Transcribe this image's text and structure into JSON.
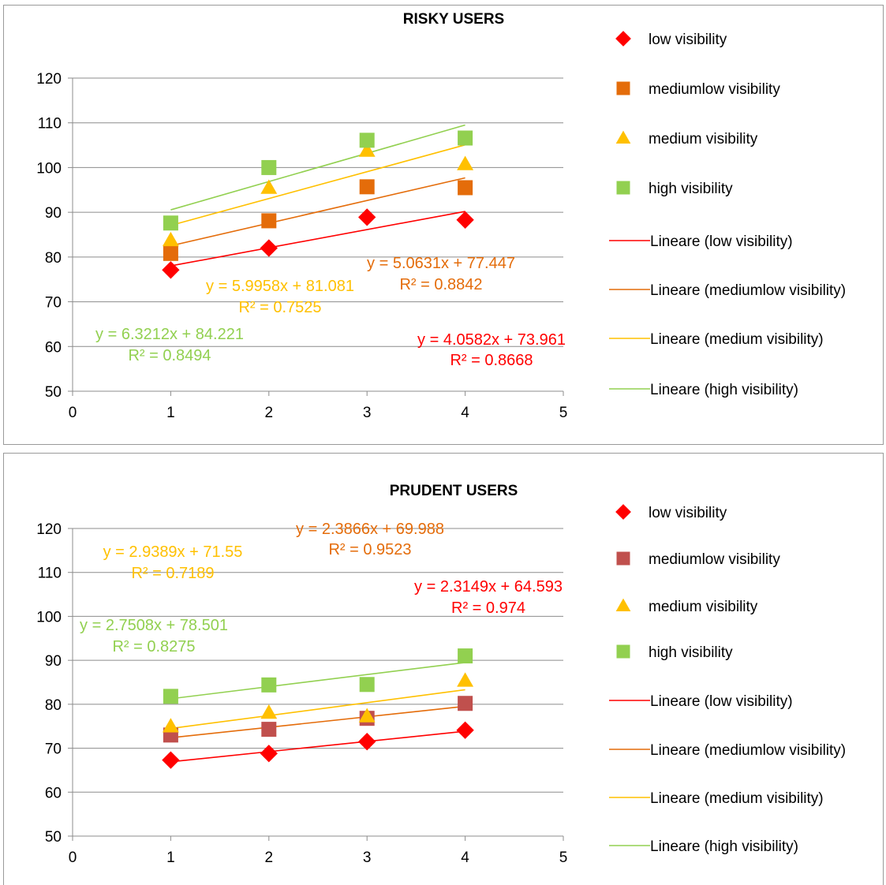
{
  "chart_data": [
    {
      "type": "scatter",
      "title": "RISKY USERS",
      "xlabel": "",
      "ylabel": "",
      "xlim": [
        0,
        5
      ],
      "ylim": [
        50,
        120
      ],
      "x_ticks": [
        "0",
        "1",
        "2",
        "3",
        "4",
        "5"
      ],
      "y_ticks": [
        "50",
        "60",
        "70",
        "80",
        "90",
        "100",
        "110",
        "120"
      ],
      "grid": "horizontal",
      "legend_position": "right",
      "series": [
        {
          "name": "low visibility",
          "marker": "diamond",
          "color": "#ff0000",
          "x": [
            1,
            2,
            3,
            4
          ],
          "y": [
            77.1,
            82.0,
            88.9,
            88.3
          ]
        },
        {
          "name": "mediumlow visibility",
          "marker": "square",
          "color": "#e46c0a",
          "x": [
            1,
            2,
            3,
            4
          ],
          "y": [
            80.8,
            88.1,
            95.7,
            95.5
          ]
        },
        {
          "name": "medium visibility",
          "marker": "triangle",
          "color": "#ffc000",
          "x": [
            1,
            2,
            3,
            4
          ],
          "y": [
            83.8,
            95.5,
            103.8,
            100.8
          ]
        },
        {
          "name": "high visibility",
          "marker": "square",
          "color": "#92d050",
          "x": [
            1,
            2,
            3,
            4
          ],
          "y": [
            87.6,
            100.0,
            106.1,
            106.6
          ]
        }
      ],
      "trendlines": [
        {
          "name": "Lineare (low visibility)",
          "color": "#ff0000",
          "slope": 4.0582,
          "intercept": 73.961,
          "x_range": [
            1,
            4
          ],
          "equation": "y = 4.0582x + 73.961",
          "r2": "R² = 0.8668"
        },
        {
          "name": "Lineare (mediumlow visibility)",
          "color": "#e46c0a",
          "slope": 5.0631,
          "intercept": 77.447,
          "x_range": [
            1,
            4
          ],
          "equation": "y = 5.0631x + 77.447",
          "r2": "R² = 0.8842"
        },
        {
          "name": "Lineare (medium visibility)",
          "color": "#ffc000",
          "slope": 5.9958,
          "intercept": 81.081,
          "x_range": [
            1,
            4
          ],
          "equation": "y = 5.9958x + 81.081",
          "r2": "R² = 0.7525"
        },
        {
          "name": "Lineare (high visibility)",
          "color": "#92d050",
          "slope": 6.3212,
          "intercept": 84.221,
          "x_range": [
            1,
            4
          ],
          "equation": "y = 6.3212x + 84.221",
          "r2": "R² = 0.8494"
        }
      ]
    },
    {
      "type": "scatter",
      "title": "PRUDENT USERS",
      "xlabel": "",
      "ylabel": "",
      "xlim": [
        0,
        5
      ],
      "ylim": [
        50,
        120
      ],
      "x_ticks": [
        "0",
        "1",
        "2",
        "3",
        "4",
        "5"
      ],
      "y_ticks": [
        "50",
        "60",
        "70",
        "80",
        "90",
        "100",
        "110",
        "120"
      ],
      "grid": "horizontal",
      "legend_position": "right",
      "series": [
        {
          "name": "low visibility",
          "marker": "diamond",
          "color": "#ff0000",
          "x": [
            1,
            2,
            3,
            4
          ],
          "y": [
            67.3,
            68.8,
            71.5,
            74.1
          ]
        },
        {
          "name": "mediumlow visibility",
          "marker": "square",
          "color": "#c0504d",
          "x": [
            1,
            2,
            3,
            4
          ],
          "y": [
            73.0,
            74.3,
            76.8,
            80.2
          ]
        },
        {
          "name": "medium visibility",
          "marker": "triangle",
          "color": "#ffc000",
          "x": [
            1,
            2,
            3,
            4
          ],
          "y": [
            75.0,
            78.1,
            77.3,
            85.4
          ]
        },
        {
          "name": "high visibility",
          "marker": "square",
          "color": "#92d050",
          "x": [
            1,
            2,
            3,
            4
          ],
          "y": [
            81.8,
            84.4,
            84.5,
            91.0
          ]
        }
      ],
      "trendlines": [
        {
          "name": "Lineare (low visibility)",
          "color": "#ff0000",
          "slope": 2.3149,
          "intercept": 64.593,
          "x_range": [
            1,
            4
          ],
          "equation": "y = 2.3149x + 64.593",
          "r2": "R² = 0.974"
        },
        {
          "name": "Lineare (mediumlow visibility)",
          "color": "#e46c0a",
          "slope": 2.3866,
          "intercept": 69.988,
          "x_range": [
            1,
            4
          ],
          "equation": "y = 2.3866x + 69.988",
          "r2": "R² = 0.9523"
        },
        {
          "name": "Lineare (medium visibility)",
          "color": "#ffc000",
          "slope": 2.9389,
          "intercept": 71.55,
          "x_range": [
            1,
            4
          ],
          "equation": "y = 2.9389x + 71.55",
          "r2": "R² = 0.7189"
        },
        {
          "name": "Lineare (high visibility)",
          "color": "#92d050",
          "slope": 2.7508,
          "intercept": 78.501,
          "x_range": [
            1,
            4
          ],
          "equation": "y = 2.7508x + 78.501",
          "r2": "R² = 0.8275"
        }
      ]
    }
  ]
}
